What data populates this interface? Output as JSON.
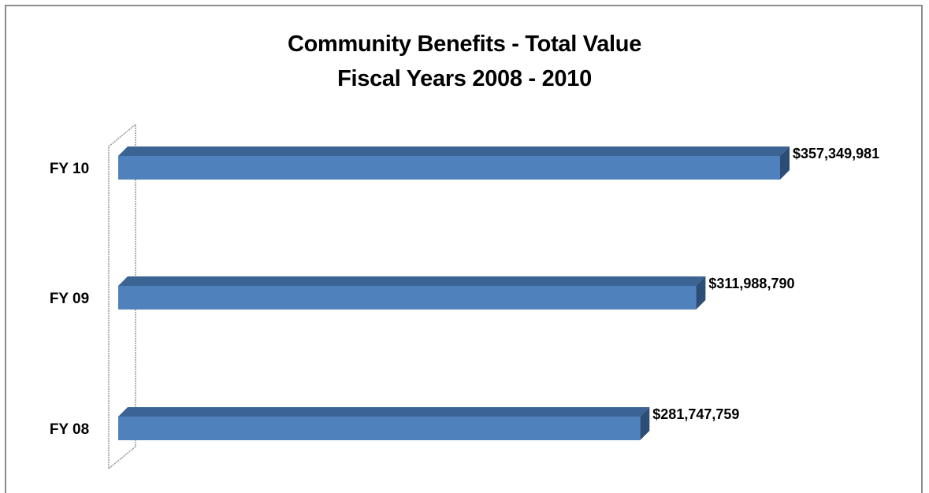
{
  "chart_data": {
    "type": "bar",
    "orientation": "horizontal",
    "title": "Community Benefits - Total Value",
    "subtitle": "Fiscal Years 2008 - 2010",
    "categories": [
      "FY 10",
      "FY 09",
      "FY 08"
    ],
    "values": [
      357349981,
      311988790,
      281747759
    ],
    "data_labels": [
      "$357,349,981",
      "$311,988,790",
      "$281,747,759"
    ],
    "xlim": [
      0,
      357349981
    ],
    "grid": false,
    "legend": "none",
    "bar_color": "#4f81bd",
    "bar_top_color": "#3b6494",
    "bar_end_color": "#2c4d75"
  }
}
